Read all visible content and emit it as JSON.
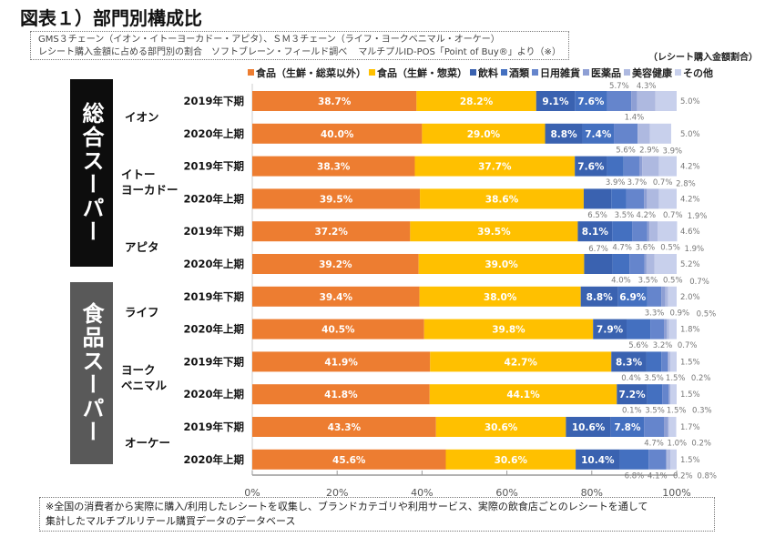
{
  "title": "図表１）部門別構成比",
  "subtitle": {
    "line1": "GMS３チェーン（イオン・イトーヨーカドー・アピタ）、ＳＭ３チェーン（ライフ・ヨークベニマル・オーケー）",
    "line2a": "レシート購入金額に占める部門別の割合　ソフトブレーン・フィールド調べ",
    "line2b": "マルチプルID-POS「Point of Buy®」より（※）"
  },
  "unit_label": "（レシート購入金額割合）",
  "groups": [
    {
      "label": "総合スーパー",
      "color": "#0d0d0d"
    },
    {
      "label": "食品スーパー",
      "color": "#595959"
    }
  ],
  "note": {
    "line1": "※全国の消費者から実際に購入/利用したレシートを収集し、ブランドカテゴリや利用サービス、実際の飲食店ごとのレシートを通して",
    "line2": "集計したマルチプルリテール購買データのデータベース"
  },
  "chart_data": {
    "type": "bar",
    "orientation": "horizontal",
    "stacked": true,
    "xlim": [
      0,
      100
    ],
    "x_ticks": [
      "0%",
      "20%",
      "40%",
      "60%",
      "80%",
      "100%"
    ],
    "legend_position": "top",
    "grid": false,
    "stores": [
      {
        "name": "イオン",
        "group": 0
      },
      {
        "name": "イトー\nヨーカドー",
        "group": 0
      },
      {
        "name": "アピタ",
        "group": 0
      },
      {
        "name": "ライフ",
        "group": 1
      },
      {
        "name": "ヨーク\nベニマル",
        "group": 1
      },
      {
        "name": "オーケー",
        "group": 1
      }
    ],
    "categories": [
      {
        "store": "イオン",
        "period": "2019年下期"
      },
      {
        "store": "イオン",
        "period": "2020年上期"
      },
      {
        "store": "イトーヨーカドー",
        "period": "2019年下期"
      },
      {
        "store": "イトーヨーカドー",
        "period": "2020年上期"
      },
      {
        "store": "アピタ",
        "period": "2019年下期"
      },
      {
        "store": "アピタ",
        "period": "2020年上期"
      },
      {
        "store": "ライフ",
        "period": "2019年下期"
      },
      {
        "store": "ライフ",
        "period": "2020年上期"
      },
      {
        "store": "ヨークベニマル",
        "period": "2019年下期"
      },
      {
        "store": "ヨークベニマル",
        "period": "2020年上期"
      },
      {
        "store": "オーケー",
        "period": "2019年下期"
      },
      {
        "store": "オーケー",
        "period": "2020年上期"
      }
    ],
    "series": [
      {
        "name": "食品（生鮮・総菜以外）",
        "color": "#ED7D31",
        "values": [
          38.7,
          40.0,
          38.3,
          39.5,
          37.2,
          39.2,
          39.4,
          40.5,
          41.9,
          41.8,
          43.3,
          45.6
        ]
      },
      {
        "name": "食品（生鮮・惣菜）",
        "color": "#FFC000",
        "values": [
          28.2,
          29.0,
          37.7,
          38.6,
          39.5,
          39.0,
          38.0,
          39.8,
          42.7,
          44.1,
          30.6,
          30.6
        ]
      },
      {
        "name": "飲料",
        "color": "#3A62B0",
        "values": [
          9.1,
          8.8,
          7.6,
          6.5,
          8.1,
          6.7,
          8.8,
          7.9,
          8.3,
          7.2,
          10.6,
          10.4
        ]
      },
      {
        "name": "酒類",
        "color": "#4470C0",
        "values": [
          7.6,
          7.4,
          3.9,
          3.5,
          4.7,
          4.0,
          6.9,
          5.6,
          3.5,
          3.5,
          7.8,
          6.8
        ]
      },
      {
        "name": "日用雑貨",
        "color": "#6585CC",
        "values": [
          5.7,
          5.6,
          3.7,
          4.2,
          3.6,
          3.5,
          3.3,
          3.2,
          1.5,
          1.5,
          4.7,
          4.1
        ]
      },
      {
        "name": "医薬品",
        "color": "#8E9FD4",
        "values": [
          1.4,
          null,
          0.7,
          0.7,
          0.5,
          0.5,
          0.9,
          0.7,
          0.2,
          0.3,
          1.0,
          0.2
        ]
      },
      {
        "name": "美容健康",
        "color": "#AEB9E0",
        "values": [
          4.3,
          2.9,
          3.9,
          2.8,
          1.9,
          1.9,
          0.7,
          0.5,
          0.4,
          0.1,
          0.2,
          0.8
        ]
      },
      {
        "name": "その他",
        "color": "#C8D0EC",
        "values": [
          5.0,
          5.0,
          4.2,
          4.2,
          4.6,
          5.2,
          2.0,
          1.8,
          1.5,
          1.5,
          1.7,
          1.5
        ]
      }
    ]
  }
}
